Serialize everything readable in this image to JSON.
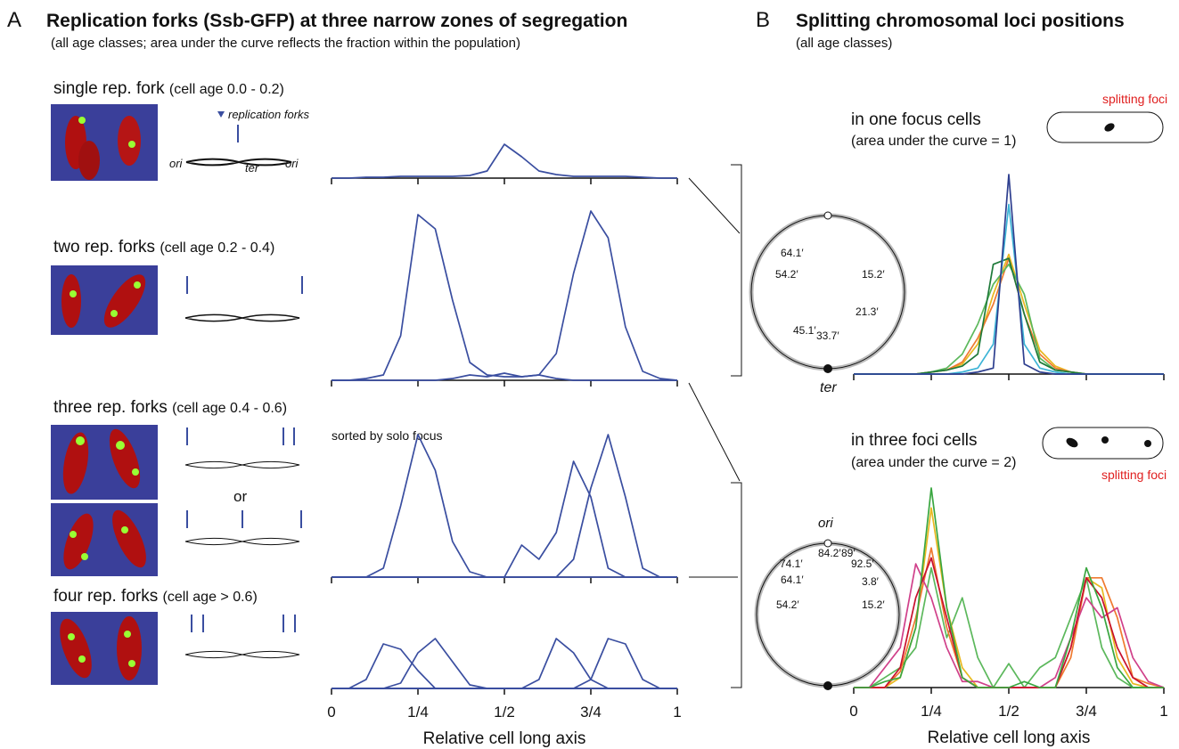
{
  "panel_a": {
    "letter": "A",
    "title": "Replication forks (Ssb-GFP) at three narrow zones of segregation",
    "subtitle": "(all age classes; area under the curve reflects the fraction within the population)",
    "rows": [
      {
        "label": "single rep. fork",
        "age": "(cell age 0.0 - 0.2)"
      },
      {
        "label": "two rep. forks",
        "age": "(cell age 0.2 - 0.4)"
      },
      {
        "label": "three rep. forks",
        "age": "(cell age 0.4 - 0.6)"
      },
      {
        "label": "four rep. forks",
        "age": "(cell age > 0.6)"
      }
    ],
    "legend": "replication forks",
    "diagram_labels": [
      "ori",
      "ter",
      "ori"
    ],
    "or": "or",
    "note": "sorted by solo focus"
  },
  "panel_b": {
    "letter": "B",
    "title": "Splitting chromosomal loci positions",
    "subtitle": "(all age classes)",
    "top_title": "in one focus cells",
    "top_subtitle": "(area under the curve = 1)",
    "top_foci": "splitting foci",
    "bottom_title": "in three foci cells",
    "bottom_subtitle": "(area under the curve = 2)",
    "bottom_foci": "splitting foci",
    "circle1": [
      "64.1′",
      "54.2′",
      "15.2′",
      "21.3′",
      "45.1′",
      "33.7′",
      "ter"
    ],
    "circle2": [
      "ori",
      "84.2′",
      "89′",
      "74.1′",
      "92.5′",
      "64.1′",
      "3.8′",
      "54.2′",
      "15.2′"
    ]
  },
  "chart_data": [
    {
      "type": "line",
      "x": [
        0,
        0.05,
        0.1,
        0.15,
        0.2,
        0.25,
        0.3,
        0.35,
        0.4,
        0.45,
        0.5,
        0.55,
        0.6,
        0.65,
        0.7,
        0.75,
        0.8,
        0.85,
        0.9,
        0.95,
        1
      ],
      "xlim": [
        0,
        1
      ],
      "xticks": [
        0,
        0.25,
        0.5,
        0.75,
        1
      ],
      "tick_labels": false,
      "ylim": [
        0,
        25
      ],
      "series": [
        {
          "color": "#3a4ea0",
          "values": [
            0,
            0,
            0.5,
            0.5,
            1,
            1,
            1,
            1,
            1.5,
            4,
            19,
            12,
            4,
            2,
            1,
            1,
            1,
            1,
            0.5,
            0,
            0
          ]
        }
      ]
    },
    {
      "type": "line",
      "x": [
        0,
        0.05,
        0.1,
        0.15,
        0.2,
        0.25,
        0.3,
        0.35,
        0.4,
        0.45,
        0.5,
        0.55,
        0.6,
        0.65,
        0.7,
        0.75,
        0.8,
        0.85,
        0.9,
        0.95,
        1
      ],
      "xlim": [
        0,
        1
      ],
      "xticks": [
        0,
        0.25,
        0.5,
        0.75,
        1
      ],
      "tick_labels": false,
      "ylim": [
        0,
        100
      ],
      "series": [
        {
          "color": "#3a4ea0",
          "values": [
            0,
            0,
            1,
            3,
            25,
            93,
            85,
            45,
            10,
            3,
            2,
            2,
            3,
            15,
            60,
            95,
            80,
            30,
            5,
            1,
            0
          ]
        },
        {
          "color": "#3a4ea0",
          "values": [
            0,
            0,
            0,
            0,
            0,
            0,
            0,
            1,
            3,
            2,
            4,
            2,
            3,
            1,
            0,
            0,
            0,
            0,
            0,
            0,
            0
          ]
        }
      ]
    },
    {
      "type": "line",
      "x": [
        0,
        0.05,
        0.1,
        0.15,
        0.2,
        0.25,
        0.3,
        0.35,
        0.4,
        0.45,
        0.5,
        0.55,
        0.6,
        0.65,
        0.7,
        0.75,
        0.8,
        0.85,
        0.9,
        0.95,
        1
      ],
      "xlim": [
        0,
        1
      ],
      "xticks": [
        0,
        0.25,
        0.5,
        0.75,
        1
      ],
      "tick_labels": false,
      "ylim": [
        0,
        85
      ],
      "series": [
        {
          "color": "#3a4ea0",
          "values": [
            0,
            0,
            0,
            5,
            40,
            80,
            60,
            20,
            3,
            0,
            0,
            0,
            0,
            0,
            0,
            0,
            0,
            0,
            0,
            0,
            0
          ]
        },
        {
          "color": "#3a4ea0",
          "values": [
            0,
            0,
            0,
            0,
            0,
            0,
            0,
            0,
            0,
            0,
            0,
            18,
            10,
            25,
            65,
            45,
            5,
            0,
            0,
            0,
            0
          ]
        },
        {
          "color": "#3a4ea0",
          "values": [
            0,
            0,
            0,
            0,
            0,
            0,
            0,
            0,
            0,
            0,
            0,
            0,
            0,
            0,
            10,
            50,
            80,
            45,
            5,
            0,
            0
          ]
        }
      ]
    },
    {
      "type": "line",
      "x": [
        0,
        0.05,
        0.1,
        0.15,
        0.2,
        0.25,
        0.3,
        0.35,
        0.4,
        0.45,
        0.5,
        0.55,
        0.6,
        0.65,
        0.7,
        0.75,
        0.8,
        0.85,
        0.9,
        0.95,
        1
      ],
      "xlim": [
        0,
        1
      ],
      "xticks": [
        0,
        {
          "value": 0.25,
          "label": "1/4"
        },
        {
          "value": 0.5,
          "label": "1/2"
        },
        {
          "value": 0.75,
          "label": "3/4"
        },
        1
      ],
      "tick_labels": true,
      "ylim": [
        0,
        40
      ],
      "x_label": "Relative cell long axis",
      "series": [
        {
          "color": "#3a4ea0",
          "values": [
            0,
            0,
            5,
            25,
            22,
            10,
            0,
            0,
            0,
            0,
            0,
            0,
            0,
            0,
            0,
            0,
            0,
            0,
            0,
            0,
            0
          ]
        },
        {
          "color": "#3a4ea0",
          "values": [
            0,
            0,
            0,
            0,
            3,
            20,
            28,
            15,
            2,
            0,
            0,
            0,
            0,
            0,
            0,
            0,
            0,
            0,
            0,
            0,
            0
          ]
        },
        {
          "color": "#3a4ea0",
          "values": [
            0,
            0,
            0,
            0,
            0,
            0,
            0,
            0,
            0,
            0,
            0,
            0,
            5,
            28,
            20,
            5,
            0,
            0,
            0,
            0,
            0
          ]
        },
        {
          "color": "#3a4ea0",
          "values": [
            0,
            0,
            0,
            0,
            0,
            0,
            0,
            0,
            0,
            0,
            0,
            0,
            0,
            0,
            0,
            5,
            28,
            25,
            5,
            0,
            0
          ]
        }
      ]
    },
    {
      "type": "line",
      "x": [
        0,
        0.05,
        0.1,
        0.15,
        0.2,
        0.25,
        0.3,
        0.35,
        0.4,
        0.45,
        0.5,
        0.55,
        0.6,
        0.65,
        0.7,
        0.75,
        0.8,
        0.85,
        0.9,
        0.95,
        1
      ],
      "xlim": [
        0,
        1
      ],
      "xticks": [
        0,
        0.25,
        0.5,
        0.75,
        1
      ],
      "tick_labels": false,
      "ylim": [
        0,
        100
      ],
      "series": [
        {
          "color": "#e8b820",
          "values": [
            0,
            0,
            0,
            0,
            0,
            1,
            2,
            5,
            15,
            40,
            60,
            35,
            12,
            4,
            1,
            0,
            0,
            0,
            0,
            0,
            0
          ]
        },
        {
          "color": "#ef7a30",
          "values": [
            0,
            0,
            0,
            0,
            0,
            1,
            2,
            6,
            18,
            35,
            58,
            30,
            10,
            3,
            1,
            0,
            0,
            0,
            0,
            0,
            0
          ]
        },
        {
          "color": "#5cb85c",
          "values": [
            0,
            0,
            0,
            0,
            0,
            1,
            3,
            10,
            25,
            45,
            55,
            40,
            8,
            2,
            1,
            0,
            0,
            0,
            0,
            0,
            0
          ]
        },
        {
          "color": "#1f7a3a",
          "values": [
            0,
            0,
            0,
            0,
            0,
            1,
            2,
            4,
            10,
            55,
            58,
            30,
            6,
            2,
            1,
            0,
            0,
            0,
            0,
            0,
            0
          ]
        },
        {
          "color": "#3cb4d6",
          "values": [
            0,
            0,
            0,
            0,
            0,
            0,
            0,
            1,
            3,
            15,
            85,
            15,
            3,
            1,
            0,
            0,
            0,
            0,
            0,
            0,
            0
          ]
        },
        {
          "color": "#2e3f8f",
          "values": [
            0,
            0,
            0,
            0,
            0,
            0,
            0,
            0,
            1,
            3,
            100,
            5,
            1,
            0,
            0,
            0,
            0,
            0,
            0,
            0,
            0
          ]
        }
      ]
    },
    {
      "type": "line",
      "x": [
        0,
        0.05,
        0.1,
        0.15,
        0.2,
        0.25,
        0.3,
        0.35,
        0.4,
        0.45,
        0.5,
        0.55,
        0.6,
        0.65,
        0.7,
        0.75,
        0.8,
        0.85,
        0.9,
        0.95,
        1
      ],
      "xlim": [
        0,
        1
      ],
      "xticks": [
        0,
        {
          "value": 0.25,
          "label": "1/4"
        },
        {
          "value": 0.5,
          "label": "1/2"
        },
        {
          "value": 0.75,
          "label": "3/4"
        },
        1
      ],
      "tick_labels": true,
      "ylim": [
        0,
        100
      ],
      "x_label": "Relative cell long axis",
      "series": [
        {
          "color": "#5cb85c",
          "values": [
            0,
            0,
            5,
            10,
            20,
            60,
            25,
            45,
            15,
            0,
            12,
            0,
            10,
            15,
            35,
            55,
            20,
            5,
            0,
            0,
            0
          ]
        },
        {
          "color": "#e8b820",
          "values": [
            0,
            0,
            0,
            5,
            30,
            90,
            40,
            10,
            0,
            0,
            0,
            0,
            0,
            0,
            20,
            55,
            50,
            15,
            2,
            0,
            0
          ]
        },
        {
          "color": "#ef7a30",
          "values": [
            0,
            0,
            0,
            8,
            35,
            70,
            30,
            5,
            0,
            0,
            0,
            0,
            0,
            0,
            15,
            55,
            55,
            35,
            5,
            2,
            0
          ]
        },
        {
          "color": "#d0408a",
          "values": [
            0,
            0,
            10,
            20,
            62,
            45,
            20,
            3,
            3,
            0,
            0,
            0,
            0,
            5,
            25,
            45,
            35,
            40,
            15,
            3,
            0
          ]
        },
        {
          "color": "#c8102e",
          "values": [
            0,
            0,
            0,
            10,
            45,
            65,
            35,
            5,
            0,
            0,
            0,
            0,
            0,
            0,
            20,
            55,
            45,
            20,
            5,
            0,
            0
          ]
        },
        {
          "color": "#3aa640",
          "values": [
            0,
            0,
            3,
            5,
            30,
            100,
            40,
            5,
            0,
            0,
            0,
            3,
            0,
            0,
            25,
            60,
            40,
            10,
            0,
            0,
            0
          ]
        }
      ]
    }
  ]
}
